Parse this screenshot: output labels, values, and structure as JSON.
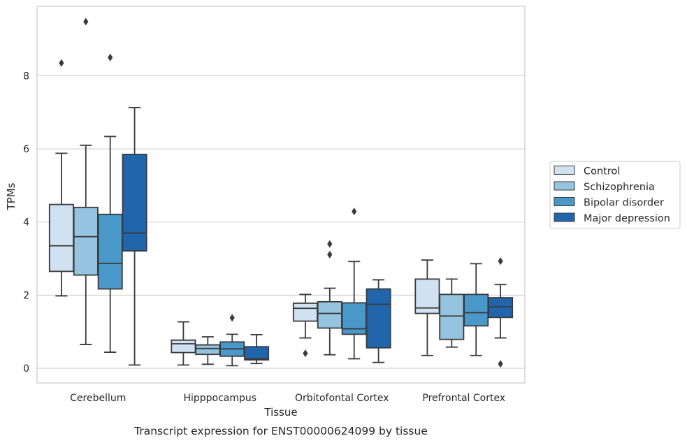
{
  "chart_data": {
    "type": "box",
    "caption": "Transcript expression for ENST00000624099 by tissue",
    "xlabel": "Tissue",
    "ylabel": "TPMs",
    "ylim": [
      -0.4,
      9.9
    ],
    "yticks": [
      0,
      2,
      4,
      6,
      8
    ],
    "grid": "horizontal",
    "legend_position": "right",
    "categories": [
      "Cerebellum",
      "Hipppocampus",
      "Orbitofontal Cortex",
      "Prefrontal Cortex"
    ],
    "series": [
      {
        "name": "Control",
        "color": "#d0e1f2",
        "boxes": [
          {
            "whisker_low": 1.98,
            "q1": 2.65,
            "median": 3.35,
            "q3": 4.48,
            "whisker_high": 5.88,
            "outliers": [
              8.35
            ]
          },
          {
            "whisker_low": 0.09,
            "q1": 0.43,
            "median": 0.67,
            "q3": 0.77,
            "whisker_high": 1.27,
            "outliers": []
          },
          {
            "whisker_low": 0.83,
            "q1": 1.29,
            "median": 1.64,
            "q3": 1.78,
            "whisker_high": 2.02,
            "outliers": [
              0.41
            ]
          },
          {
            "whisker_low": 0.35,
            "q1": 1.5,
            "median": 1.65,
            "q3": 2.44,
            "whisker_high": 2.96,
            "outliers": []
          }
        ]
      },
      {
        "name": "Schizophrenia",
        "color": "#94c4df",
        "boxes": [
          {
            "whisker_low": 0.65,
            "q1": 2.55,
            "median": 3.6,
            "q3": 4.4,
            "whisker_high": 6.1,
            "outliers": [
              9.48
            ]
          },
          {
            "whisker_low": 0.11,
            "q1": 0.38,
            "median": 0.54,
            "q3": 0.64,
            "whisker_high": 0.86,
            "outliers": []
          },
          {
            "whisker_low": 0.37,
            "q1": 1.1,
            "median": 1.5,
            "q3": 1.82,
            "whisker_high": 2.19,
            "outliers": [
              3.11,
              3.4
            ]
          },
          {
            "whisker_low": 0.58,
            "q1": 0.79,
            "median": 1.43,
            "q3": 2.02,
            "whisker_high": 2.44,
            "outliers": []
          }
        ]
      },
      {
        "name": "Bipolar disorder",
        "color": "#4a98c9",
        "boxes": [
          {
            "whisker_low": 0.44,
            "q1": 2.17,
            "median": 2.87,
            "q3": 4.21,
            "whisker_high": 6.34,
            "outliers": [
              8.5
            ]
          },
          {
            "whisker_low": 0.07,
            "q1": 0.33,
            "median": 0.53,
            "q3": 0.72,
            "whisker_high": 0.93,
            "outliers": [
              1.38
            ]
          },
          {
            "whisker_low": 0.26,
            "q1": 0.93,
            "median": 1.08,
            "q3": 1.79,
            "whisker_high": 2.92,
            "outliers": [
              4.29
            ]
          },
          {
            "whisker_low": 0.35,
            "q1": 1.16,
            "median": 1.52,
            "q3": 2.02,
            "whisker_high": 2.86,
            "outliers": []
          }
        ]
      },
      {
        "name": "Major depression",
        "color": "#2166ac",
        "boxes": [
          {
            "whisker_low": 0.09,
            "q1": 3.21,
            "median": 3.7,
            "q3": 5.85,
            "whisker_high": 7.13,
            "outliers": []
          },
          {
            "whisker_low": 0.13,
            "q1": 0.23,
            "median": 0.26,
            "q3": 0.59,
            "whisker_high": 0.92,
            "outliers": []
          },
          {
            "whisker_low": 0.16,
            "q1": 0.56,
            "median": 1.75,
            "q3": 2.17,
            "whisker_high": 2.42,
            "outliers": []
          },
          {
            "whisker_low": 0.83,
            "q1": 1.39,
            "median": 1.68,
            "q3": 1.93,
            "whisker_high": 2.29,
            "outliers": [
              0.12,
              2.93
            ]
          }
        ]
      }
    ]
  }
}
